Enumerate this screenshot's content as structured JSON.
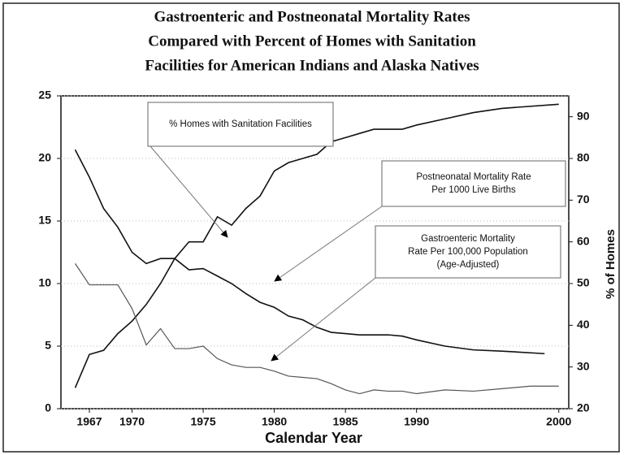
{
  "chart_data": {
    "type": "line",
    "title": [
      "Gastroenteric and Postneonatal Mortality Rates",
      "Compared with Percent of Homes with Sanitation",
      "Facilities for American Indians and Alaska Natives"
    ],
    "xlabel": "Calendar Year",
    "y2label": "% of Homes",
    "xlim": [
      1965,
      2000.7
    ],
    "xticks": [
      1967,
      1970,
      1975,
      1980,
      1985,
      1990,
      2000
    ],
    "ylim": [
      0,
      25
    ],
    "yticks": [
      0,
      5,
      10,
      15,
      20,
      25
    ],
    "y2lim": [
      20,
      95
    ],
    "y2ticks": [
      20,
      30,
      40,
      50,
      60,
      70,
      80,
      90
    ],
    "grid": true,
    "series": [
      {
        "name": "% Homes with Sanitation Facilities",
        "color": "#111111",
        "axis": "y2",
        "x": [
          1966,
          1967,
          1968,
          1969,
          1970,
          1971,
          1972,
          1973,
          1974,
          1975,
          1976,
          1977,
          1978,
          1979,
          1980,
          1981,
          1982,
          1983,
          1984,
          1985,
          1986,
          1987,
          1988,
          1989,
          1990,
          1992,
          1994,
          1996,
          2000
        ],
        "values": [
          25,
          33,
          34,
          38,
          41,
          45,
          50,
          56,
          60,
          60,
          66,
          64,
          68,
          71,
          77,
          79,
          80,
          81,
          84,
          85,
          86,
          87,
          87,
          87,
          88,
          89.5,
          91,
          92,
          93
        ]
      },
      {
        "name": "Postneonatal Mortality Rate Per 1000 Live Births",
        "color": "#111111",
        "x": [
          1966,
          1967,
          1968,
          1969,
          1970,
          1971,
          1972,
          1973,
          1974,
          1975,
          1976,
          1977,
          1978,
          1979,
          1980,
          1981,
          1982,
          1983,
          1984,
          1985,
          1986,
          1987,
          1988,
          1989,
          1990,
          1992,
          1994,
          1996,
          1999
        ],
        "values": [
          20.7,
          18.5,
          16,
          14.5,
          12.5,
          11.6,
          12,
          12,
          11.1,
          11.2,
          10.6,
          10,
          9.2,
          8.5,
          8.1,
          7.4,
          7.1,
          6.5,
          6.1,
          6,
          5.9,
          5.9,
          5.9,
          5.8,
          5.5,
          5,
          4.7,
          4.6,
          4.4
        ]
      },
      {
        "name": "Gastroenteric Mortality Rate Per 100,000 Population (Age-Adjusted)",
        "color": "#555555",
        "x": [
          1966,
          1967,
          1968,
          1969,
          1970,
          1971,
          1972,
          1973,
          1974,
          1975,
          1976,
          1977,
          1978,
          1979,
          1980,
          1981,
          1982,
          1983,
          1984,
          1985,
          1986,
          1987,
          1988,
          1989,
          1990,
          1992,
          1994,
          1996,
          1998,
          2000
        ],
        "values": [
          11.6,
          9.9,
          9.9,
          9.9,
          8,
          5.1,
          6.4,
          4.8,
          4.8,
          5,
          4,
          3.5,
          3.3,
          3.3,
          3,
          2.6,
          2.5,
          2.4,
          2,
          1.5,
          1.2,
          1.5,
          1.4,
          1.4,
          1.2,
          1.5,
          1.4,
          1.6,
          1.8,
          1.8
        ]
      }
    ],
    "annotations": [
      {
        "lines": [
          "% Homes with Sanitation Facilities"
        ]
      },
      {
        "lines": [
          "Postneonatal Mortality Rate",
          "Per 1000 Live Births"
        ]
      },
      {
        "lines": [
          "Gastroenteric Mortality",
          "Rate Per 100,000 Population",
          "(Age-Adjusted)"
        ]
      }
    ]
  }
}
